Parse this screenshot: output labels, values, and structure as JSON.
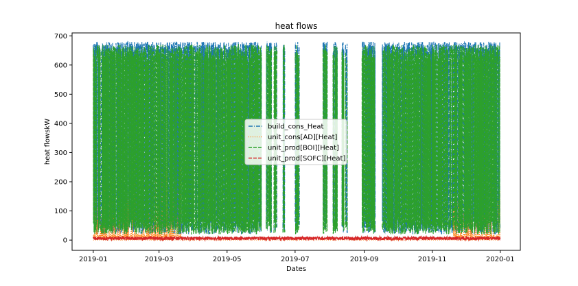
{
  "chart_data": {
    "type": "line",
    "title": "heat flows",
    "xlabel": "Dates",
    "ylabel": "heat flowskW",
    "xlim": [
      "2018-12-13",
      "2020-01-19"
    ],
    "ylim": [
      -35,
      710
    ],
    "x_ticks": [
      "2019-01",
      "2019-03",
      "2019-05",
      "2019-07",
      "2019-09",
      "2019-11",
      "2020-01"
    ],
    "y_ticks": [
      0,
      100,
      200,
      300,
      400,
      500,
      600,
      700
    ],
    "grid": false,
    "legend_position": "center",
    "series": [
      {
        "name": "build_cons_Heat",
        "color": "#1f77b4",
        "style": "dashdot",
        "active_periods": [
          [
            "2019-01-01",
            "2019-05-31"
          ],
          [
            "2019-06-05",
            "2019-06-09"
          ],
          [
            "2019-06-12",
            "2019-06-14"
          ],
          [
            "2019-06-20",
            "2019-06-21"
          ],
          [
            "2019-07-01",
            "2019-07-04"
          ],
          [
            "2019-07-26",
            "2019-07-29"
          ],
          [
            "2019-08-04",
            "2019-08-07"
          ],
          [
            "2019-08-12",
            "2019-08-13"
          ],
          [
            "2019-08-15",
            "2019-08-16"
          ],
          [
            "2019-08-30",
            "2019-09-10"
          ],
          [
            "2019-09-17",
            "2019-12-31"
          ]
        ],
        "max": 680,
        "min": 20
      },
      {
        "name": "unit_cons[AD][Heat]",
        "color": "#ff7f0e",
        "style": "dotted",
        "active_periods": [
          [
            "2019-01-01",
            "2019-03-20"
          ],
          [
            "2019-11-20",
            "2019-12-31"
          ]
        ],
        "max": 250,
        "min": 0
      },
      {
        "name": "unit_prod[BOI][Heat]",
        "color": "#2ca02c",
        "style": "dashed",
        "active_periods": [
          [
            "2019-01-01",
            "2019-05-31"
          ],
          [
            "2019-06-05",
            "2019-06-09"
          ],
          [
            "2019-06-12",
            "2019-06-14"
          ],
          [
            "2019-06-20",
            "2019-06-21"
          ],
          [
            "2019-07-01",
            "2019-07-04"
          ],
          [
            "2019-07-26",
            "2019-07-29"
          ],
          [
            "2019-08-04",
            "2019-08-07"
          ],
          [
            "2019-08-12",
            "2019-08-13"
          ],
          [
            "2019-08-15",
            "2019-08-16"
          ],
          [
            "2019-08-30",
            "2019-09-10"
          ],
          [
            "2019-09-17",
            "2019-12-31"
          ]
        ],
        "max": 670,
        "min": 20
      },
      {
        "name": "unit_prod[SOFC][Heat]",
        "color": "#d62728",
        "style": "dashed",
        "active_periods": [
          [
            "2019-01-01",
            "2019-12-31"
          ]
        ],
        "max": 12,
        "min": 0
      }
    ]
  }
}
